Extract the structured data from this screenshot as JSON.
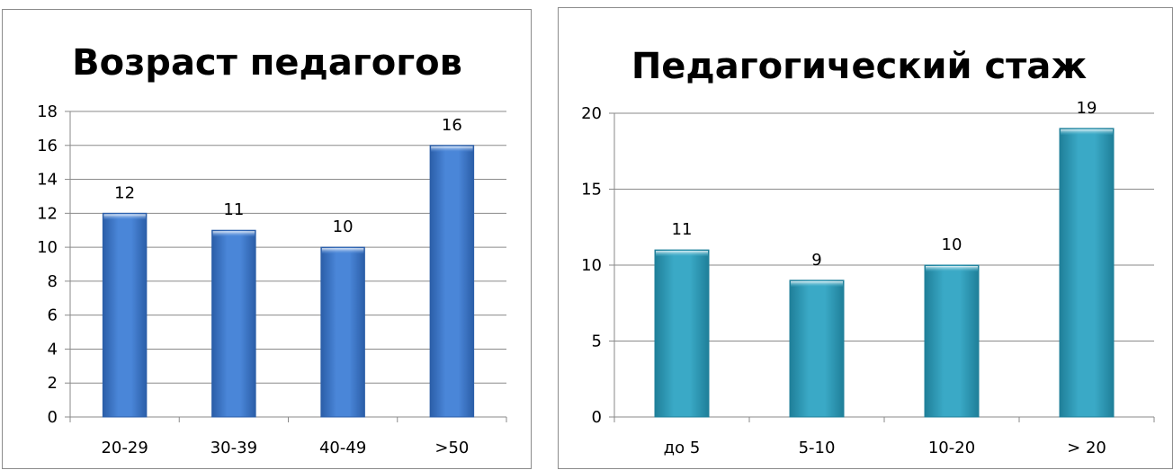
{
  "chart_data": [
    {
      "type": "bar",
      "title": "Возраст педагогов",
      "categories": [
        "20-29",
        "30-39",
        "40-49",
        ">50"
      ],
      "values": [
        12,
        11,
        10,
        16
      ],
      "ylim": [
        0,
        18
      ],
      "yticks": [
        0,
        2,
        4,
        6,
        8,
        10,
        12,
        14,
        16,
        18
      ],
      "grid": true,
      "data_labels": true,
      "bar_color": "#4a86d8",
      "bar_color_dark": "#2b5ea8"
    },
    {
      "type": "bar",
      "title": "Педагогический стаж",
      "categories": [
        "до 5",
        "5-10",
        "10-20",
        "> 20"
      ],
      "values": [
        11,
        9,
        10,
        19
      ],
      "ylim": [
        0,
        20
      ],
      "yticks": [
        0,
        5,
        10,
        15,
        20
      ],
      "grid": true,
      "data_labels": true,
      "bar_color": "#3aa9c6",
      "bar_color_dark": "#1f7f99"
    }
  ]
}
